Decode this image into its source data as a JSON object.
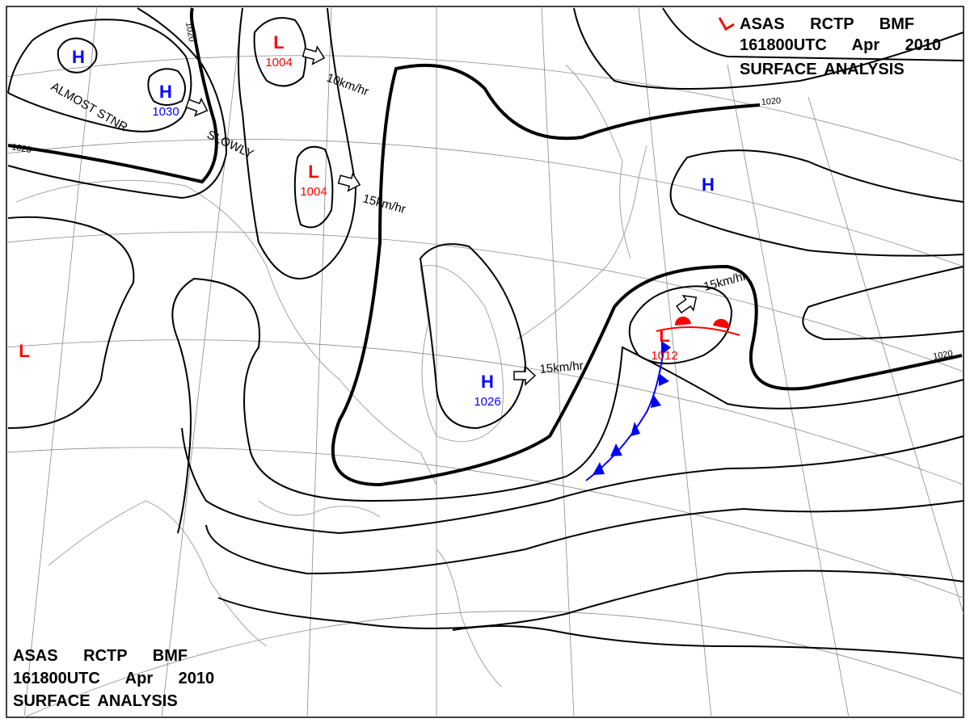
{
  "header": {
    "lines": [
      "ASAS RCTP BMF",
      "161800UTC Apr 2010",
      "SURFACE ANALYSIS"
    ]
  },
  "footer": {
    "lines": [
      "ASAS RCTP BMF",
      "161800UTC Apr 2010",
      "SURFACE ANALYSIS"
    ]
  },
  "centers": [
    {
      "type": "H",
      "pressure": null
    },
    {
      "type": "H",
      "pressure": "1030"
    },
    {
      "type": "L",
      "pressure": "1004"
    },
    {
      "type": "L",
      "pressure": "1004"
    },
    {
      "type": "H",
      "pressure": null
    },
    {
      "type": "L",
      "pressure": null
    },
    {
      "type": "H",
      "pressure": "1026"
    },
    {
      "type": "L",
      "pressure": "1012"
    }
  ],
  "motions": [
    "ALMOST STNR",
    "SLOWLY",
    "10km/hr",
    "15km/hr",
    "15km/hr",
    "15km/hr"
  ],
  "isobar_labels": [
    "1020",
    "1020",
    "1020",
    "1020"
  ]
}
